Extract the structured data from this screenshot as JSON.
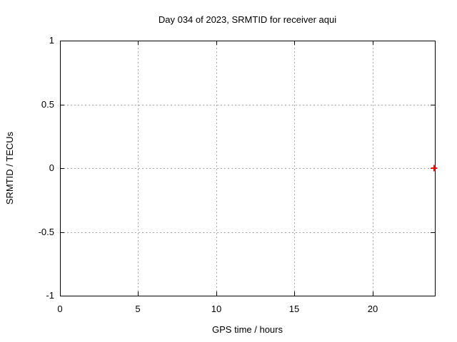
{
  "chart_data": {
    "type": "scatter",
    "title": "Day 034 of 2023, SRMTID for receiver aqui",
    "xlabel": "GPS time / hours",
    "ylabel": "SRMTID / TECUs",
    "xlim": [
      0,
      24
    ],
    "ylim": [
      -1,
      1
    ],
    "xticks": [
      {
        "v": 0,
        "label": "0"
      },
      {
        "v": 5,
        "label": "5"
      },
      {
        "v": 10,
        "label": "10"
      },
      {
        "v": 15,
        "label": "15"
      },
      {
        "v": 20,
        "label": "20"
      }
    ],
    "yticks": [
      {
        "v": -1,
        "label": "-1"
      },
      {
        "v": -0.5,
        "label": "-0.5"
      },
      {
        "v": 0,
        "label": "0"
      },
      {
        "v": 0.5,
        "label": "0.5"
      },
      {
        "v": 1,
        "label": "1"
      }
    ],
    "grid": true,
    "legend": "none",
    "series": [
      {
        "name": "SRMTID",
        "marker": "plus",
        "color": "#ff0000",
        "points": [
          [
            23.95,
            0
          ]
        ]
      }
    ]
  },
  "colors": {
    "background": "#ffffff",
    "axis": "#000000",
    "grid": "#a8a8a8",
    "text": "#000000",
    "marker": "#ff0000"
  }
}
